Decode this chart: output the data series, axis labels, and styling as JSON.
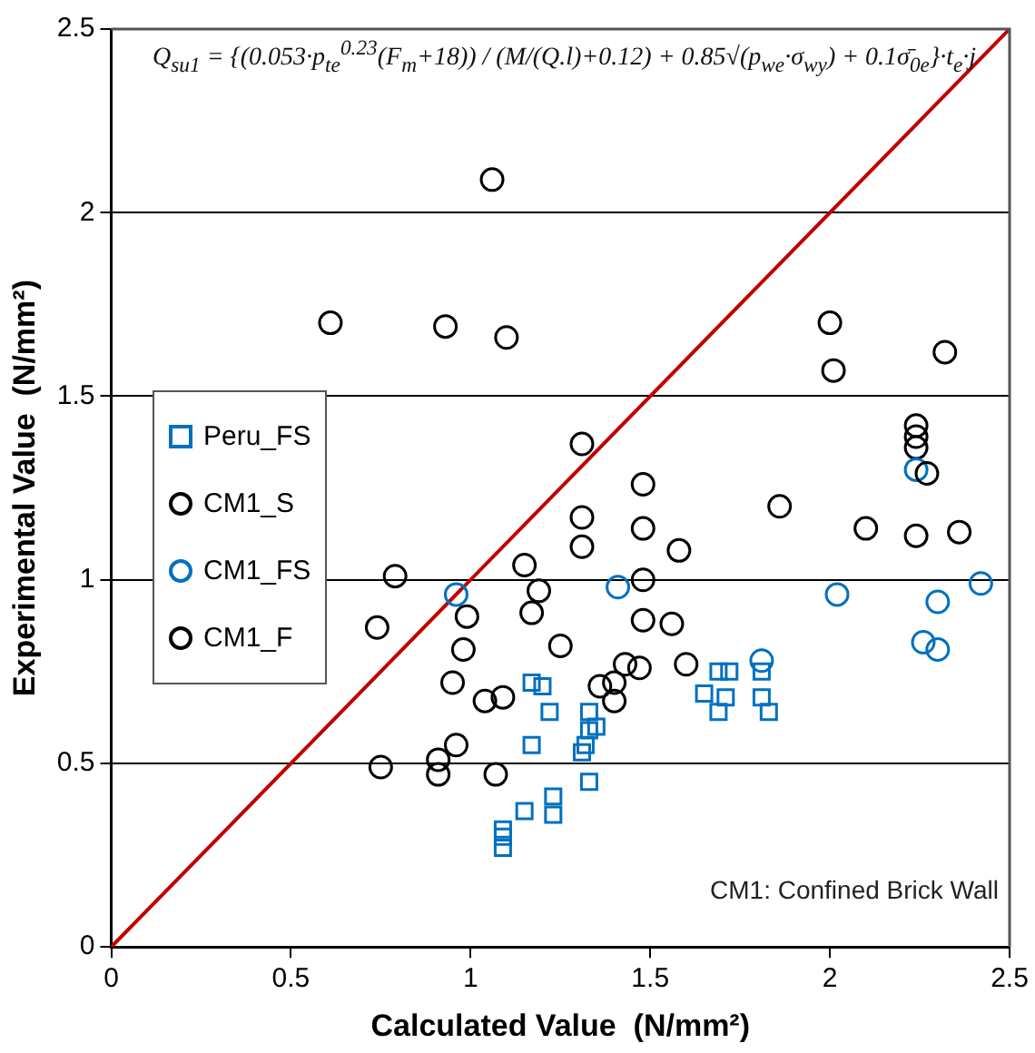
{
  "chart_data": {
    "type": "scatter",
    "xlabel": "Calculated Value  (N/mm²)",
    "ylabel": "Experimental Value  (N/mm²)",
    "xlim": [
      0,
      2.5
    ],
    "ylim": [
      0,
      2.5
    ],
    "xticks": [
      0,
      0.5,
      1,
      1.5,
      2,
      2.5
    ],
    "yticks": [
      0,
      0.5,
      1,
      1.5,
      2,
      2.5
    ],
    "grid": "y",
    "legend": "left",
    "annotations": [
      "Q$_{su1}$ = {(0.053·p$_{te}$$^{0.23}$(F$_{m}$+18)) / (M/(Q.l)+0.12) + 0.85√(p$_{we}$·σ$_{wy}$) + 0.1σ̄$_{0e}$}·t$_{e}$·j",
      "CM1: Confined Brick Wall"
    ],
    "series": [
      {
        "name": "Peru_FS",
        "color": "#0070c0",
        "marker": "square",
        "x": [
          1.17,
          1.2,
          1.22,
          1.17,
          1.15,
          1.09,
          1.09,
          1.09,
          1.23,
          1.23,
          1.33,
          1.33,
          1.32,
          1.31,
          1.35,
          1.33,
          1.69,
          1.72,
          1.65,
          1.71,
          1.69,
          1.81,
          1.81,
          1.83
        ],
        "values": [
          0.72,
          0.71,
          0.64,
          0.55,
          0.37,
          0.32,
          0.3,
          0.27,
          0.41,
          0.36,
          0.64,
          0.59,
          0.55,
          0.53,
          0.6,
          0.45,
          0.75,
          0.75,
          0.69,
          0.68,
          0.64,
          0.75,
          0.68,
          0.64
        ]
      },
      {
        "name": "CM1_S",
        "color": "#000000",
        "marker": "circle",
        "x": [
          1.06,
          0.61,
          0.93,
          1.1,
          2.0,
          2.01,
          2.32,
          1.31,
          1.48,
          1.48,
          1.31,
          1.31,
          1.86,
          2.1,
          2.24,
          2.36,
          2.27,
          1.58,
          1.48,
          1.48,
          1.56,
          1.6,
          1.43,
          1.47,
          1.36,
          1.4,
          1.4,
          1.25,
          0.79,
          1.15,
          1.19,
          0.99,
          1.17,
          0.74,
          0.98,
          0.95,
          1.04,
          1.09,
          0.96,
          0.91,
          0.75,
          0.91
        ],
        "values": [
          2.09,
          1.7,
          1.69,
          1.66,
          1.7,
          1.57,
          1.62,
          1.37,
          1.26,
          1.14,
          1.17,
          1.09,
          1.2,
          1.14,
          1.12,
          1.13,
          1.29,
          1.08,
          1.0,
          0.89,
          0.88,
          0.77,
          0.77,
          0.76,
          0.71,
          0.72,
          0.67,
          0.82,
          1.01,
          1.04,
          0.97,
          0.9,
          0.91,
          0.87,
          0.81,
          0.72,
          0.67,
          0.68,
          0.55,
          0.51,
          0.49,
          0.47
        ]
      },
      {
        "name": "CM1_FS",
        "color": "#0070c0",
        "marker": "circle",
        "x": [
          0.96,
          1.41,
          2.02,
          2.42,
          2.3,
          2.26,
          2.3,
          1.81,
          2.24
        ],
        "values": [
          0.96,
          0.98,
          0.96,
          0.99,
          0.94,
          0.83,
          0.81,
          0.78,
          1.3
        ]
      },
      {
        "name": "CM1_F",
        "color": "#000000",
        "marker": "circle",
        "x": [
          2.24,
          2.24,
          2.24,
          1.07
        ],
        "values": [
          1.42,
          1.39,
          1.36,
          0.47
        ]
      },
      {
        "type": "line",
        "color": "#c00000",
        "marker": "none",
        "x": [
          0,
          2.5
        ],
        "values": [
          0,
          2.5
        ]
      }
    ]
  }
}
